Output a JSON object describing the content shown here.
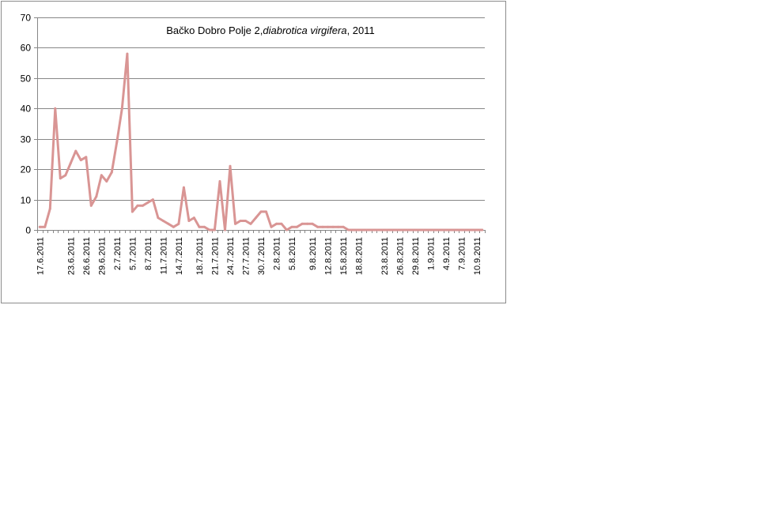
{
  "chart_data": {
    "type": "line",
    "title_prefix": "Bačko Dobro Polje 2,",
    "title_italic": "diabrotica virgifera",
    "title_suffix": ", 2011",
    "xlabel": "",
    "ylabel": "",
    "ylim": [
      0,
      70
    ],
    "yticks": [
      0,
      10,
      20,
      30,
      40,
      50,
      60,
      70
    ],
    "grid": true,
    "legend": "none",
    "line_color": "#d99594",
    "gridline_color": "#878787",
    "x": [
      "17.6.2011",
      "18.6.2011",
      "19.6.2011",
      "20.6.2011",
      "21.6.2011",
      "22.6.2011",
      "23.6.2011",
      "24.6.2011",
      "25.6.2011",
      "26.6.2011",
      "27.6.2011",
      "28.6.2011",
      "29.6.2011",
      "30.6.2011",
      "1.7.2011",
      "2.7.2011",
      "3.7.2011",
      "4.7.2011",
      "5.7.2011",
      "6.7.2011",
      "7.7.2011",
      "8.7.2011",
      "9.7.2011",
      "10.7.2011",
      "11.7.2011",
      "12.7.2011",
      "13.7.2011",
      "14.7.2011",
      "15.7.2011",
      "16.7.2011",
      "17.7.2011",
      "18.7.2011",
      "19.7.2011",
      "20.7.2011",
      "21.7.2011",
      "22.7.2011",
      "23.7.2011",
      "24.7.2011",
      "25.7.2011",
      "26.7.2011",
      "27.7.2011",
      "28.7.2011",
      "29.7.2011",
      "30.7.2011",
      "31.7.2011",
      "1.8.2011",
      "2.8.2011",
      "3.8.2011",
      "4.8.2011",
      "5.8.2011",
      "6.8.2011",
      "7.8.2011",
      "8.8.2011",
      "9.8.2011",
      "10.8.2011",
      "11.8.2011",
      "12.8.2011",
      "13.8.2011",
      "14.8.2011",
      "15.8.2011",
      "16.8.2011",
      "17.8.2011",
      "18.8.2011",
      "19.8.2011",
      "20.8.2011",
      "21.8.2011",
      "22.8.2011",
      "23.8.2011",
      "24.8.2011",
      "25.8.2011",
      "26.8.2011",
      "27.8.2011",
      "28.8.2011",
      "29.8.2011",
      "30.8.2011",
      "31.8.2011",
      "1.9.2011",
      "2.9.2011",
      "3.9.2011",
      "4.9.2011",
      "5.9.2011",
      "6.9.2011",
      "7.9.2011",
      "8.9.2011",
      "9.9.2011",
      "10.9.2011",
      "11.9.2011"
    ],
    "tick_labels": [
      "17.6.2011",
      "23.6.2011",
      "26.6.2011",
      "29.6.2011",
      "2.7.2011",
      "5.7.2011",
      "8.7.2011",
      "11.7.2011",
      "14.7.2011",
      "18.7.2011",
      "21.7.2011",
      "24.7.2011",
      "27.7.2011",
      "30.7.2011",
      "2.8.2011",
      "5.8.2011",
      "9.8.2011",
      "12.8.2011",
      "15.8.2011",
      "18.8.2011",
      "23.8.2011",
      "26.8.2011",
      "29.8.2011",
      "1.9.2011",
      "4.9.2011",
      "7.9.2011",
      "10.9.2011"
    ],
    "series": [
      {
        "values": [
          1,
          1,
          7,
          40,
          17,
          18,
          22,
          26,
          23,
          24,
          8,
          11,
          18,
          16,
          19,
          29,
          40,
          58,
          6,
          8,
          8,
          9,
          10,
          4,
          3,
          2,
          1,
          2,
          14,
          3,
          4,
          1,
          1,
          0,
          0,
          16,
          0,
          21,
          2,
          3,
          3,
          2,
          4,
          6,
          6,
          1,
          2,
          2,
          0,
          1,
          1,
          2,
          2,
          2,
          1,
          1,
          1,
          1,
          1,
          1,
          0,
          0,
          0,
          0,
          0,
          0,
          0,
          0,
          0,
          0,
          0,
          0,
          0,
          0,
          0,
          0,
          0,
          0,
          0,
          0,
          0,
          0,
          0,
          0,
          0,
          0,
          0
        ]
      }
    ]
  }
}
